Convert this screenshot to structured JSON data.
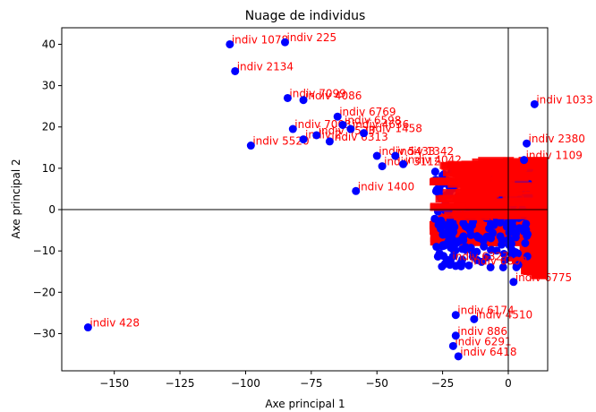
{
  "chart_data": {
    "type": "scatter",
    "title": "Nuage de individus",
    "xlabel": "Axe principal 1",
    "ylabel": "Axe principal 2",
    "xlim": [
      -170,
      15
    ],
    "ylim": [
      -39,
      44
    ],
    "xticks": [
      -150,
      -125,
      -100,
      -75,
      -50,
      -25,
      0
    ],
    "yticks": [
      -30,
      -20,
      -10,
      0,
      10,
      20,
      30,
      40
    ],
    "tick_labels_x": [
      "−150",
      "−125",
      "−100",
      "−75",
      "−50",
      "−25",
      "0"
    ],
    "tick_labels_y": [
      "−30",
      "−20",
      "−10",
      "0",
      "10",
      "20",
      "30",
      "40"
    ],
    "reference_lines": {
      "x": 0,
      "y": 0
    },
    "grid": false,
    "point_color": "#0000ff",
    "label_color": "#ff0000",
    "points": [
      {
        "x": -106,
        "y": 40,
        "label": "indiv 1078"
      },
      {
        "x": -85,
        "y": 40.5,
        "label": "indiv 225"
      },
      {
        "x": -104,
        "y": 33.5,
        "label": "indiv 2134"
      },
      {
        "x": -84,
        "y": 27,
        "label": "indiv 7099"
      },
      {
        "x": -78,
        "y": 26.5,
        "label": "indiv 4086"
      },
      {
        "x": -65,
        "y": 22.5,
        "label": "indiv 6769"
      },
      {
        "x": -63,
        "y": 20.5,
        "label": "indiv 6598"
      },
      {
        "x": -60,
        "y": 19.5,
        "label": "indiv 4636"
      },
      {
        "x": -82,
        "y": 19.5,
        "label": "indiv 7003"
      },
      {
        "x": -78,
        "y": 17,
        "label": "indiv 2"
      },
      {
        "x": -73,
        "y": 18,
        "label": "indiv 4523"
      },
      {
        "x": -68,
        "y": 16.5,
        "label": "indiv 6313"
      },
      {
        "x": -98,
        "y": 15.5,
        "label": "indiv 5520"
      },
      {
        "x": -55,
        "y": 18.5,
        "label": "indiv 1458"
      },
      {
        "x": -50,
        "y": 13,
        "label": "indiv 5433"
      },
      {
        "x": -43,
        "y": 13,
        "label": "indiv 1342"
      },
      {
        "x": -40,
        "y": 11,
        "label": "indiv 4042"
      },
      {
        "x": -48,
        "y": 10.5,
        "label": "indiv 3112"
      },
      {
        "x": -58,
        "y": 4.5,
        "label": "indiv 1400"
      },
      {
        "x": -160,
        "y": -28.5,
        "label": "indiv 428"
      },
      {
        "x": -22,
        "y": -12.5,
        "label": "indiv 6327"
      },
      {
        "x": -15,
        "y": -13.5,
        "label": "indiv 6800"
      },
      {
        "x": 2,
        "y": -17.5,
        "label": "indiv 6775"
      },
      {
        "x": -20,
        "y": -25.5,
        "label": "indiv 6174"
      },
      {
        "x": -13,
        "y": -26.5,
        "label": "indiv 4510"
      },
      {
        "x": -20,
        "y": -30.5,
        "label": "indiv 886"
      },
      {
        "x": -21,
        "y": -33,
        "label": "indiv 6291"
      },
      {
        "x": -19,
        "y": -35.5,
        "label": "indiv 6418"
      },
      {
        "x": 10,
        "y": 25.5,
        "label": "indiv 1033"
      },
      {
        "x": 7,
        "y": 16,
        "label": "indiv 2380"
      },
      {
        "x": 6,
        "y": 12,
        "label": "indiv 1109"
      }
    ]
  }
}
